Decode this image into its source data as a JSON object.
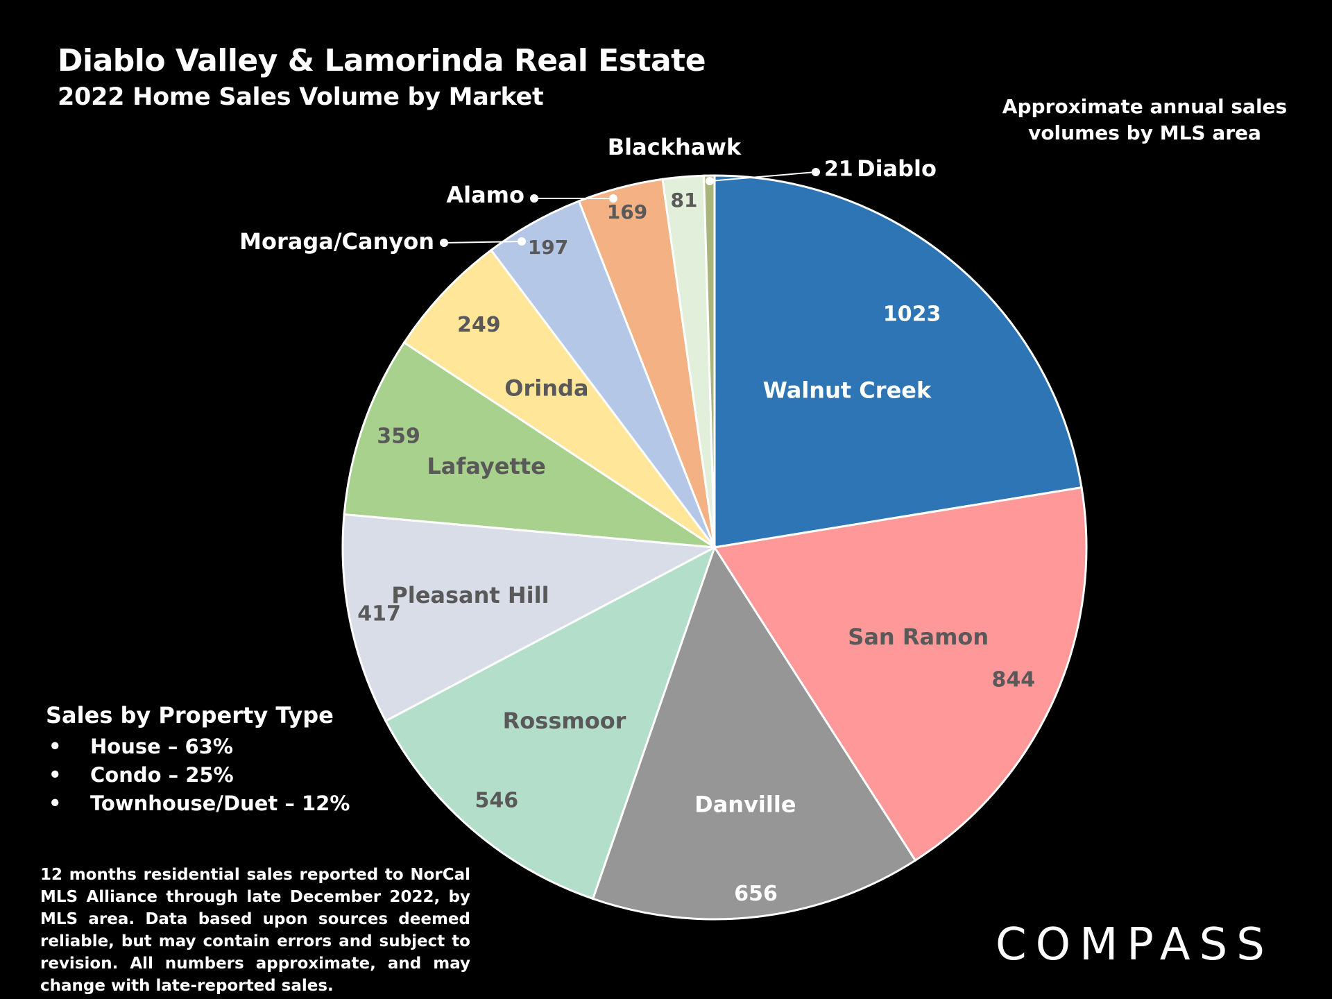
{
  "header": {
    "title": "Diablo Valley & Lamorinda Real Estate",
    "subtitle": "2022 Home Sales Volume by Market"
  },
  "annotation": "Approximate annual sales volumes by MLS area",
  "chart_data": {
    "type": "pie",
    "title": "Diablo Valley & Lamorinda Real Estate",
    "subtitle": "2022 Home Sales Volume by Market",
    "slices": [
      {
        "label": "Walnut Creek",
        "value": 1023,
        "color": "#2E75B6"
      },
      {
        "label": "San Ramon",
        "value": 844,
        "color": "#FF9999"
      },
      {
        "label": "Danville",
        "value": 656,
        "color": "#969696"
      },
      {
        "label": "Rossmoor",
        "value": 546,
        "color": "#B3DEC9"
      },
      {
        "label": "Pleasant Hill",
        "value": 417,
        "color": "#D9DDE8"
      },
      {
        "label": "Lafayette",
        "value": 359,
        "color": "#A9D18E"
      },
      {
        "label": "Orinda",
        "value": 249,
        "color": "#FFE699"
      },
      {
        "label": "Moraga/Canyon",
        "value": 197,
        "color": "#B4C7E7"
      },
      {
        "label": "Alamo",
        "value": 169,
        "color": "#F4B183"
      },
      {
        "label": "Blackhawk",
        "value": 81,
        "color": "#E2EFDA"
      },
      {
        "label": "Diablo",
        "value": 21,
        "color": "#A9B57C"
      }
    ]
  },
  "property_types": {
    "title": "Sales by Property Type",
    "bullet": "•",
    "items": [
      "House – 63%",
      "Condo – 25%",
      "Townhouse/Duet – 12%"
    ]
  },
  "footnote": "12 months residential sales reported to NorCal MLS Alliance through late December 2022, by MLS area. Data based upon sources deemed reliable, but may contain errors and subject to revision. All numbers approximate, and may change with late-reported sales.",
  "logo": "COMPASS"
}
